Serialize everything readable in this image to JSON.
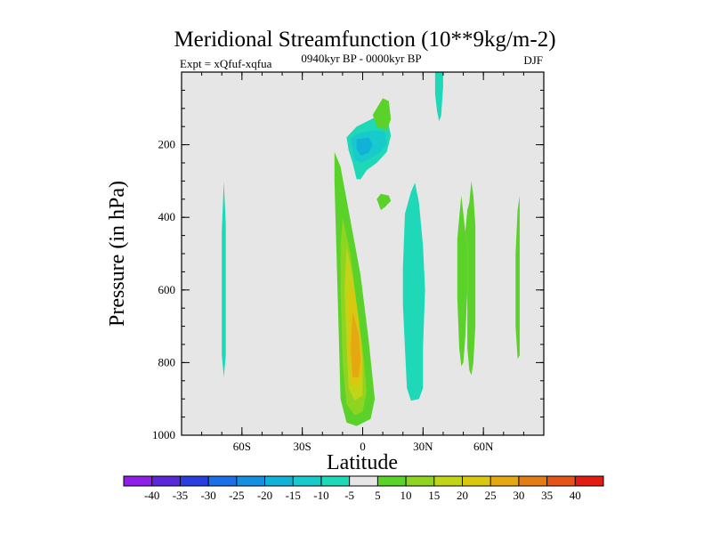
{
  "chart_data": {
    "type": "contour",
    "title": "Meridional Streamfunction (10**9kg/m-2)",
    "subtitle": "0940kyr BP - 0000kyr BP",
    "left_label": "Expt = xQfuf-xqfua",
    "right_label": "DJF",
    "xlabel": "Latitude",
    "ylabel": "Pressure (in hPa)",
    "xlim": [
      -90,
      90
    ],
    "ylim": [
      1000,
      0
    ],
    "x_ticks": [
      {
        "value": -60,
        "label": "60S"
      },
      {
        "value": -30,
        "label": "30S"
      },
      {
        "value": 0,
        "label": "0"
      },
      {
        "value": 30,
        "label": "30N"
      },
      {
        "value": 60,
        "label": "60N"
      }
    ],
    "y_ticks": [
      {
        "value": 200,
        "label": "200"
      },
      {
        "value": 400,
        "label": "400"
      },
      {
        "value": 600,
        "label": "600"
      },
      {
        "value": 800,
        "label": "800"
      },
      {
        "value": 1000,
        "label": "1000"
      }
    ],
    "background_color": "#e6e6e6",
    "colorbar": {
      "levels": [
        "-40",
        "-35",
        "-30",
        "-25",
        "-20",
        "-15",
        "-10",
        "-5",
        "5",
        "10",
        "15",
        "20",
        "25",
        "30",
        "35",
        "40"
      ],
      "colors": [
        "#8f1fe6",
        "#5a28d6",
        "#2a3ee0",
        "#1d6fe8",
        "#1590e0",
        "#11b2d8",
        "#18cacc",
        "#1ed8b8",
        "#e6e6e6",
        "#5ad22a",
        "#8ed420",
        "#c0d418",
        "#dac810",
        "#e4a812",
        "#e47c16",
        "#e45418",
        "#e01c14"
      ]
    },
    "regions": [
      {
        "name": "positive-5-10-sh-ascent",
        "color": "#5ad22a",
        "points": [
          [
            -14,
            220
          ],
          [
            -11,
            260
          ],
          [
            -6,
            410
          ],
          [
            -1,
            560
          ],
          [
            3,
            740
          ],
          [
            6,
            900
          ],
          [
            4,
            955
          ],
          [
            -3,
            975
          ],
          [
            -8,
            965
          ],
          [
            -11,
            900
          ],
          [
            -12,
            700
          ],
          [
            -13,
            500
          ],
          [
            -14,
            300
          ]
        ]
      },
      {
        "name": "positive-10-15",
        "color": "#8ed420",
        "points": [
          [
            -10,
            400
          ],
          [
            -6,
            500
          ],
          [
            -3,
            640
          ],
          [
            0,
            760
          ],
          [
            2,
            880
          ],
          [
            0,
            935
          ],
          [
            -4,
            945
          ],
          [
            -8,
            915
          ],
          [
            -10,
            800
          ],
          [
            -11,
            600
          ],
          [
            -11,
            480
          ]
        ]
      },
      {
        "name": "positive-15-20",
        "color": "#c0d418",
        "points": [
          [
            -8,
            480
          ],
          [
            -5,
            560
          ],
          [
            -2,
            680
          ],
          [
            0,
            790
          ],
          [
            0,
            890
          ],
          [
            -4,
            905
          ],
          [
            -7,
            870
          ],
          [
            -8,
            740
          ],
          [
            -9,
            600
          ]
        ]
      },
      {
        "name": "positive-20-25",
        "color": "#dac810",
        "points": [
          [
            -6,
            560
          ],
          [
            -3,
            640
          ],
          [
            -1,
            740
          ],
          [
            0,
            830
          ],
          [
            -2,
            865
          ],
          [
            -6,
            860
          ],
          [
            -7,
            760
          ],
          [
            -7,
            640
          ]
        ]
      },
      {
        "name": "positive-25-30",
        "color": "#e4a812",
        "points": [
          [
            -5,
            660
          ],
          [
            -2,
            720
          ],
          [
            -1,
            790
          ],
          [
            -2,
            840
          ],
          [
            -5,
            840
          ],
          [
            -6,
            760
          ]
        ]
      },
      {
        "name": "negative-5-10-upper",
        "color": "#1ed8b8",
        "points": [
          [
            -8,
            180
          ],
          [
            -3,
            150
          ],
          [
            6,
            125
          ],
          [
            12,
            120
          ],
          [
            14,
            175
          ],
          [
            12,
            220
          ],
          [
            7,
            250
          ],
          [
            2,
            270
          ],
          [
            -1,
            295
          ],
          [
            -3,
            295
          ],
          [
            -5,
            250
          ],
          [
            -7,
            215
          ]
        ]
      },
      {
        "name": "negative-10-15-upper",
        "color": "#18cacc",
        "points": [
          [
            -6,
            185
          ],
          [
            -3,
            170
          ],
          [
            5,
            160
          ],
          [
            11,
            165
          ],
          [
            12,
            200
          ],
          [
            8,
            225
          ],
          [
            3,
            240
          ],
          [
            -1,
            250
          ],
          [
            -4,
            240
          ]
        ]
      },
      {
        "name": "negative-15-20-upper",
        "color": "#11b2d8",
        "points": [
          [
            -3,
            185
          ],
          [
            3,
            180
          ],
          [
            5,
            200
          ],
          [
            3,
            222
          ],
          [
            -1,
            230
          ],
          [
            -3,
            212
          ]
        ]
      },
      {
        "name": "positive-5-10-upper-tail",
        "color": "#5ad22a",
        "points": [
          [
            5,
            118
          ],
          [
            10,
            72
          ],
          [
            13,
            80
          ],
          [
            14,
            130
          ],
          [
            12,
            160
          ],
          [
            7,
            150
          ]
        ]
      },
      {
        "name": "positive-5-10-small-blob",
        "color": "#5ad22a",
        "points": [
          [
            7,
            350
          ],
          [
            9,
            335
          ],
          [
            13,
            340
          ],
          [
            14,
            355
          ],
          [
            11,
            372
          ],
          [
            9,
            380
          ]
        ]
      },
      {
        "name": "negative-5-10-nh-column",
        "color": "#1ed8b8",
        "points": [
          [
            20,
            540
          ],
          [
            21,
            390
          ],
          [
            24,
            330
          ],
          [
            26,
            305
          ],
          [
            28,
            360
          ],
          [
            30,
            480
          ],
          [
            31,
            600
          ],
          [
            30,
            760
          ],
          [
            30,
            870
          ],
          [
            28,
            900
          ],
          [
            24,
            905
          ],
          [
            22,
            870
          ],
          [
            21,
            760
          ],
          [
            20,
            640
          ]
        ]
      },
      {
        "name": "negative-5-10-top-strip",
        "color": "#1ed8b8",
        "points": [
          [
            36,
            0
          ],
          [
            40,
            0
          ],
          [
            40,
            40
          ],
          [
            39,
            120
          ],
          [
            38,
            135
          ],
          [
            37,
            110
          ],
          [
            36,
            60
          ]
        ]
      },
      {
        "name": "positive-5-10-nh-column-a",
        "color": "#5ad22a",
        "points": [
          [
            47,
            460
          ],
          [
            48,
            400
          ],
          [
            49,
            340
          ],
          [
            50,
            390
          ],
          [
            51,
            440
          ],
          [
            52,
            480
          ],
          [
            52,
            600
          ],
          [
            51,
            730
          ],
          [
            50,
            800
          ],
          [
            49,
            810
          ],
          [
            48,
            760
          ],
          [
            47,
            620
          ]
        ]
      },
      {
        "name": "positive-5-10-nh-column-b",
        "color": "#5ad22a",
        "points": [
          [
            51,
            440
          ],
          [
            52,
            380
          ],
          [
            53,
            360
          ],
          [
            54,
            300
          ],
          [
            55,
            340
          ],
          [
            56,
            420
          ],
          [
            56,
            560
          ],
          [
            56,
            700
          ],
          [
            55,
            800
          ],
          [
            54,
            835
          ],
          [
            53,
            820
          ],
          [
            52,
            760
          ],
          [
            52,
            480
          ]
        ]
      },
      {
        "name": "positive-5-10-high-lat-strip",
        "color": "#5ad22a",
        "points": [
          [
            77,
            380
          ],
          [
            78,
            340
          ],
          [
            78,
            420
          ],
          [
            78,
            600
          ],
          [
            78,
            780
          ],
          [
            77,
            790
          ],
          [
            76,
            700
          ],
          [
            76,
            500
          ]
        ]
      },
      {
        "name": "negative-5-10-sh-strip",
        "color": "#1ed8b8",
        "points": [
          [
            -70,
            440
          ],
          [
            -69,
            300
          ],
          [
            -68,
            420
          ],
          [
            -68,
            600
          ],
          [
            -68,
            780
          ],
          [
            -69,
            840
          ],
          [
            -70,
            780
          ],
          [
            -70,
            600
          ]
        ]
      }
    ]
  }
}
